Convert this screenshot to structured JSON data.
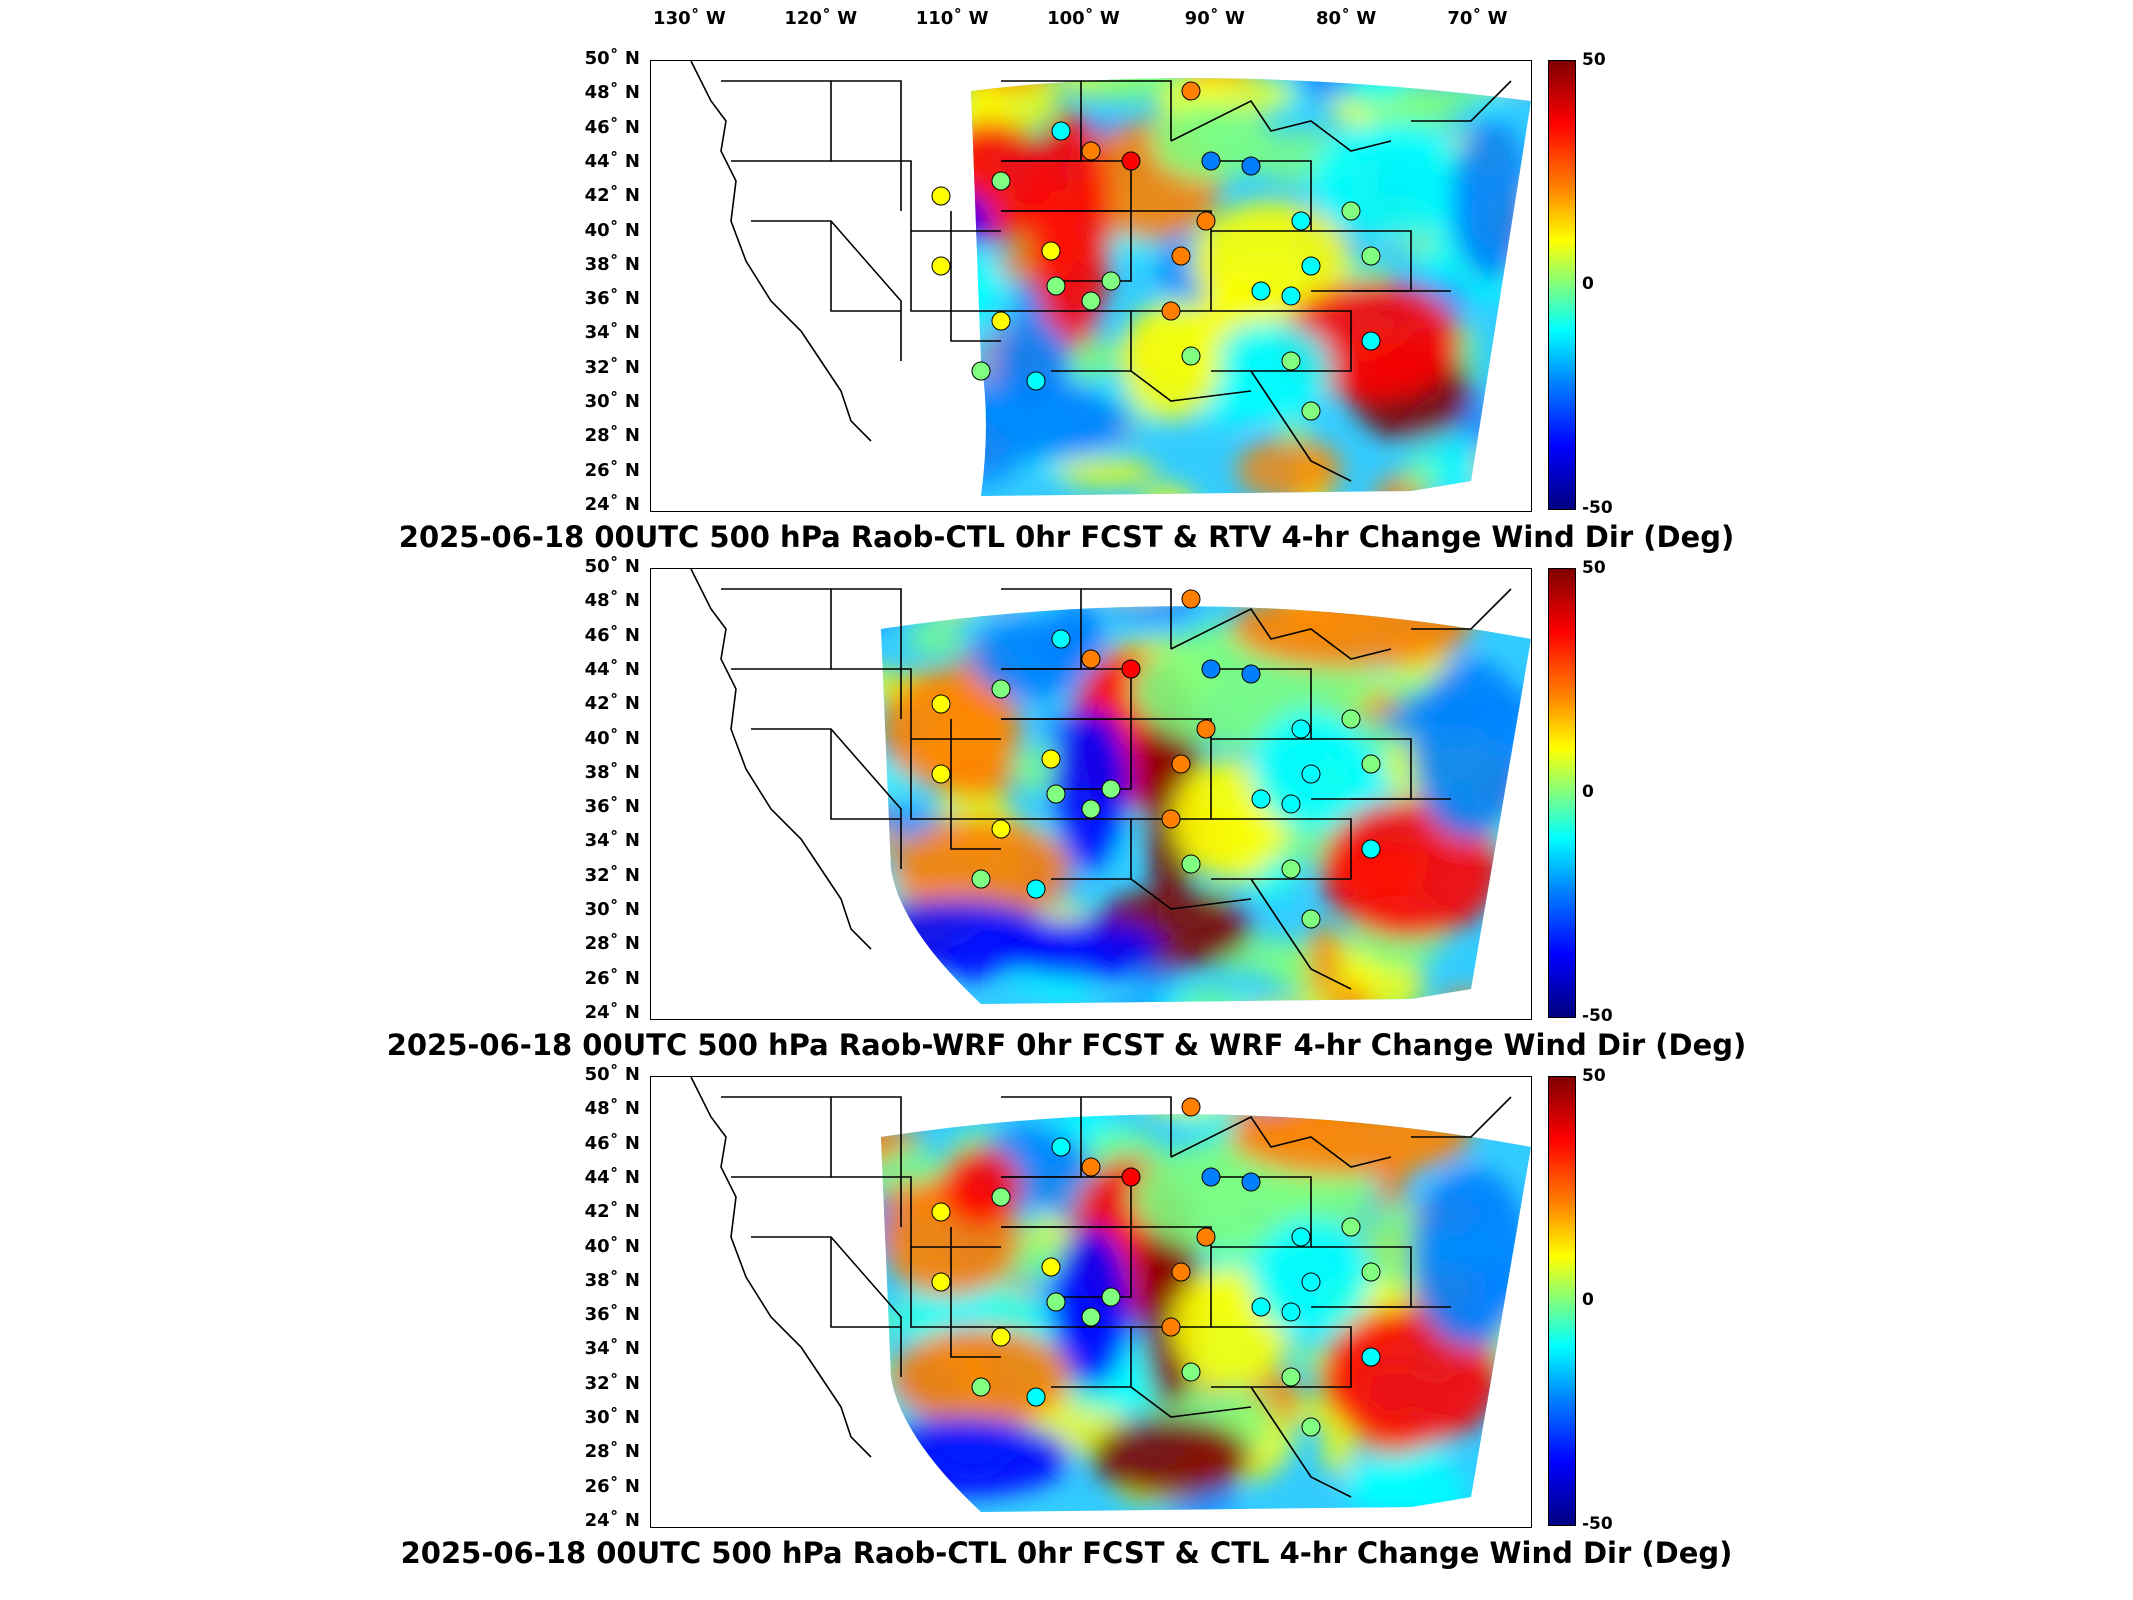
{
  "longitude_axis": [
    {
      "label": "130˚ W",
      "lon": -130
    },
    {
      "label": "120˚ W",
      "lon": -120
    },
    {
      "label": "110˚ W",
      "lon": -110
    },
    {
      "label": "100˚ W",
      "lon": -100
    },
    {
      "label": "90˚ W",
      "lon": -90
    },
    {
      "label": "80˚ W",
      "lon": -80
    },
    {
      "label": "70˚ W",
      "lon": -70
    }
  ],
  "latitude_axis": [
    "50˚ N",
    "48˚ N",
    "46˚ N",
    "44˚ N",
    "42˚ N",
    "40˚ N",
    "38˚ N",
    "36˚ N",
    "34˚ N",
    "32˚ N",
    "30˚ N",
    "28˚ N",
    "26˚ N",
    "24˚ N"
  ],
  "colorbar": {
    "max_label": "50",
    "mid_label": "0",
    "min_label": "-50",
    "range": [
      -50,
      50
    ]
  },
  "colors": {
    "dark_red": "#7f0000",
    "red": "#ff0000",
    "orange": "#ff8000",
    "yellow": "#ffff00",
    "green": "#80ff80",
    "cyan": "#00ffff",
    "blue": "#0080ff",
    "dark_blue": "#00007f"
  },
  "panels": [
    {
      "title": "2025-06-18 00UTC 500 hPa Raob-CTL 0hr FCST & RTV 4-hr Change Wind Dir (Deg)"
    },
    {
      "title": "2025-06-18 00UTC 500 hPa Raob-WRF 0hr FCST & WRF 4-hr Change Wind Dir (Deg)"
    },
    {
      "title": "2025-06-18 00UTC 500 hPa Raob-CTL 0hr FCST & CTL 4-hr Change Wind Dir (Deg)"
    }
  ]
}
